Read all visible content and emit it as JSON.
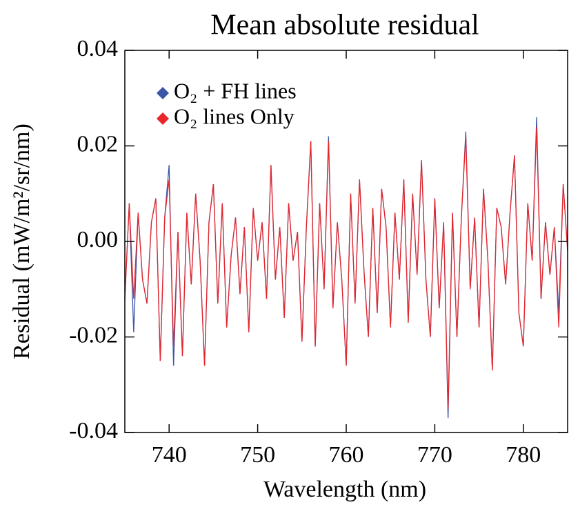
{
  "chart_data": {
    "type": "line",
    "title": "Mean absolute residual",
    "xlabel": "Wavelength (nm)",
    "ylabel": "Residual (mW/m²/sr/nm)",
    "xlim": [
      735,
      785
    ],
    "xticks": [
      740,
      750,
      760,
      770,
      780
    ],
    "ylim": [
      -0.04,
      0.04
    ],
    "yticks": [
      -0.04,
      -0.02,
      {
        "value": 0,
        "label": "0.00"
      },
      0.02,
      0.04
    ],
    "legend": "upper left",
    "x": [
      735,
      735.5,
      736,
      736.5,
      737,
      737.5,
      738,
      738.5,
      739,
      739.5,
      740,
      740.5,
      741,
      741.5,
      742,
      742.5,
      743,
      743.5,
      744,
      744.5,
      745,
      745.5,
      746,
      746.5,
      747,
      747.5,
      748,
      748.5,
      749,
      749.5,
      750,
      750.5,
      751,
      751.5,
      752,
      752.5,
      753,
      753.5,
      754,
      754.5,
      755,
      755.5,
      756,
      756.5,
      757,
      757.5,
      758,
      758.5,
      759,
      759.5,
      760,
      760.5,
      761,
      761.5,
      762,
      762.5,
      763,
      763.5,
      764,
      764.5,
      765,
      765.5,
      766,
      766.5,
      767,
      767.5,
      768,
      768.5,
      769,
      769.5,
      770,
      770.5,
      771,
      771.5,
      772,
      772.5,
      773,
      773.5,
      774,
      774.5,
      775,
      775.5,
      776,
      776.5,
      777,
      777.5,
      778,
      778.5,
      779,
      779.5,
      780,
      780.5,
      781,
      781.5,
      782,
      782.5,
      783,
      783.5,
      784,
      784.5,
      785
    ],
    "series": [
      {
        "name": "O₂ + FH lines",
        "color": "#3a55a6",
        "values": [
          -0.012,
          0.008,
          -0.019,
          0.006,
          -0.008,
          -0.013,
          0.004,
          0.009,
          -0.025,
          0.005,
          0.016,
          -0.026,
          0.002,
          -0.024,
          0.006,
          -0.009,
          0.01,
          -0.004,
          -0.026,
          0.004,
          0.012,
          -0.013,
          0.008,
          -0.018,
          -0.003,
          0.005,
          -0.011,
          0.003,
          -0.019,
          0.007,
          -0.004,
          0.004,
          -0.012,
          0.016,
          -0.008,
          0.003,
          -0.016,
          0.008,
          -0.004,
          0.002,
          -0.021,
          0.003,
          0.021,
          -0.022,
          0.008,
          -0.01,
          0.022,
          -0.014,
          0.004,
          -0.008,
          -0.026,
          0.01,
          -0.013,
          0.013,
          -0.006,
          -0.02,
          0.007,
          -0.015,
          0.011,
          0.003,
          -0.018,
          0.006,
          -0.008,
          0.013,
          -0.017,
          0.01,
          -0.007,
          0.017,
          -0.008,
          -0.02,
          0.009,
          -0.014,
          0.004,
          -0.037,
          0.006,
          -0.02,
          0.005,
          0.023,
          -0.01,
          0.005,
          -0.018,
          0.011,
          -0.004,
          -0.027,
          0.007,
          0.003,
          -0.009,
          0.006,
          0.018,
          -0.015,
          -0.022,
          0.008,
          -0.004,
          0.026,
          -0.012,
          0.004,
          -0.007,
          0.003,
          -0.015,
          0.012,
          -0.002
        ]
      },
      {
        "name": "O₂ lines Only",
        "color": "#e8262b",
        "values": [
          -0.012,
          0.008,
          -0.012,
          0.006,
          -0.008,
          -0.013,
          0.004,
          0.009,
          -0.025,
          0.005,
          0.013,
          -0.022,
          0.002,
          -0.024,
          0.006,
          -0.009,
          0.01,
          -0.004,
          -0.026,
          0.004,
          0.012,
          -0.013,
          0.008,
          -0.018,
          -0.003,
          0.005,
          -0.011,
          0.003,
          -0.019,
          0.007,
          -0.004,
          0.004,
          -0.012,
          0.016,
          -0.008,
          0.003,
          -0.016,
          0.008,
          -0.004,
          0.002,
          -0.021,
          0.003,
          0.021,
          -0.022,
          0.008,
          -0.01,
          0.021,
          -0.014,
          0.004,
          -0.008,
          -0.026,
          0.01,
          -0.013,
          0.013,
          -0.006,
          -0.02,
          0.007,
          -0.015,
          0.011,
          0.003,
          -0.018,
          0.006,
          -0.008,
          0.013,
          -0.017,
          0.01,
          -0.007,
          0.017,
          -0.008,
          -0.02,
          0.009,
          -0.014,
          0.004,
          -0.035,
          0.006,
          -0.02,
          0.005,
          0.022,
          -0.01,
          0.005,
          -0.018,
          0.011,
          -0.004,
          -0.027,
          0.007,
          0.003,
          -0.009,
          0.006,
          0.018,
          -0.015,
          -0.022,
          0.008,
          -0.004,
          0.024,
          -0.012,
          0.004,
          -0.007,
          0.003,
          -0.018,
          0.012,
          -0.002
        ]
      }
    ]
  }
}
